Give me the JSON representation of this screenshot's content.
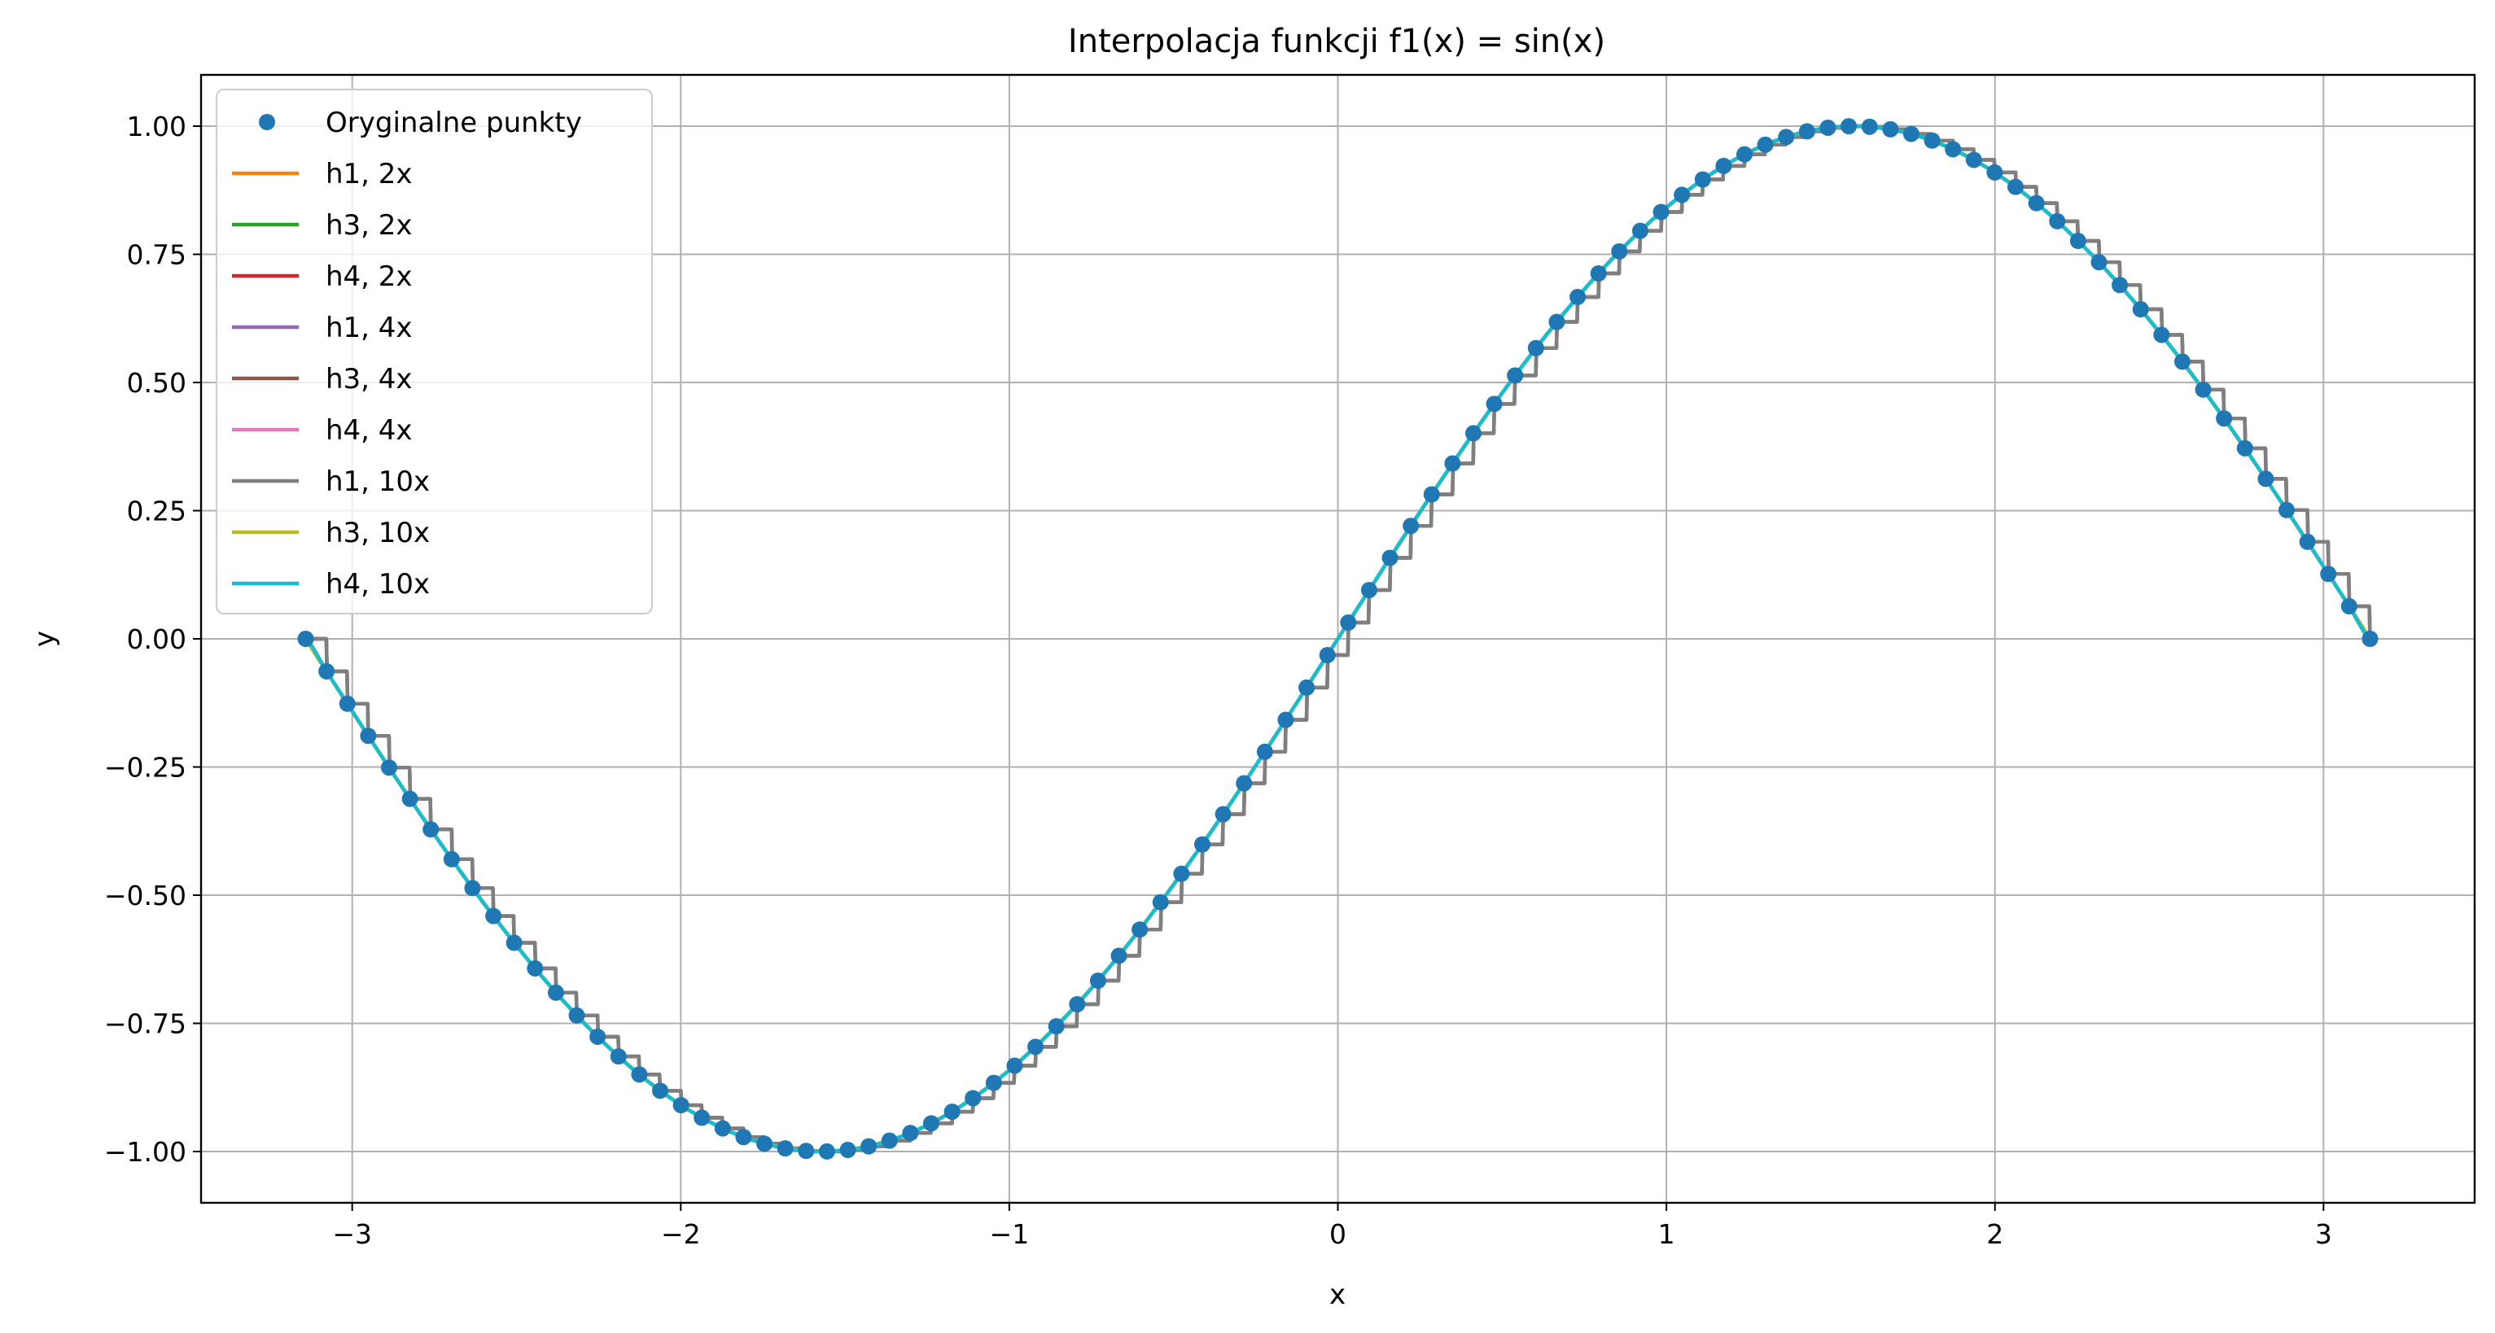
{
  "chart_data": {
    "type": "line",
    "title": "Interpolacja funkcji f1(x) = sin(x)",
    "xlabel": "x",
    "ylabel": "y",
    "xlim": [
      -3.46,
      3.46
    ],
    "ylim": [
      -1.1,
      1.1
    ],
    "x_ticks": [
      -3,
      -2,
      -1,
      0,
      1,
      2,
      3
    ],
    "x_tick_labels": [
      "−3",
      "−2",
      "−1",
      "0",
      "1",
      "2",
      "3"
    ],
    "y_ticks": [
      -1.0,
      -0.75,
      -0.5,
      -0.25,
      0.0,
      0.25,
      0.5,
      0.75,
      1.0
    ],
    "y_tick_labels": [
      "−1.00",
      "−0.75",
      "−0.50",
      "−0.25",
      "0.00",
      "0.25",
      "0.50",
      "0.75",
      "1.00"
    ],
    "grid": true,
    "legend_position": "top-left",
    "function": "sin(x)",
    "x_range": [
      -3.14159,
      3.14159
    ],
    "original_points": {
      "name": "Oryginalne punkty",
      "color": "#1f77b4",
      "count": 100
    },
    "series": [
      {
        "name": "h1, 2x",
        "color": "#ff7f0e",
        "kernel": "h1",
        "factor": 2
      },
      {
        "name": "h3, 2x",
        "color": "#2ca02c",
        "kernel": "h3",
        "factor": 2
      },
      {
        "name": "h4, 2x",
        "color": "#d62728",
        "kernel": "h4",
        "factor": 2
      },
      {
        "name": "h1, 4x",
        "color": "#9467bd",
        "kernel": "h1",
        "factor": 4
      },
      {
        "name": "h3, 4x",
        "color": "#8c564b",
        "kernel": "h3",
        "factor": 4
      },
      {
        "name": "h4, 4x",
        "color": "#e377c2",
        "kernel": "h4",
        "factor": 4
      },
      {
        "name": "h1, 10x",
        "color": "#7f7f7f",
        "kernel": "h1",
        "factor": 10
      },
      {
        "name": "h3, 10x",
        "color": "#bcbd22",
        "kernel": "h3",
        "factor": 10
      },
      {
        "name": "h4, 10x",
        "color": "#17becf",
        "kernel": "h4",
        "factor": 10
      }
    ]
  }
}
